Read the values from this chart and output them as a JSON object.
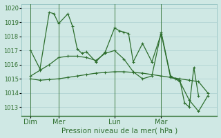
{
  "background_color": "#cfe8e4",
  "grid_color": "#aacfcf",
  "line_color": "#2d6e2d",
  "marker": "+",
  "title": "Pression niveau de la mer( hPa )",
  "ylim": [
    1012.4,
    1020.3
  ],
  "yticks": [
    1013,
    1014,
    1015,
    1016,
    1017,
    1018,
    1019,
    1020
  ],
  "xlim": [
    0,
    21
  ],
  "day_positions": [
    1,
    4,
    10,
    15
  ],
  "day_labels": [
    "Dim",
    "Mer",
    "Lun",
    "Mar"
  ],
  "vline_positions": [
    1,
    4,
    10,
    15
  ],
  "series1_x": [
    1,
    2,
    3,
    3.5,
    4,
    5,
    5.5,
    6,
    6.5,
    7,
    8,
    9,
    10,
    10.5,
    11,
    11.5,
    12,
    13,
    14,
    15,
    16,
    16.5,
    17,
    17.5,
    18,
    18.5,
    19
  ],
  "series1_y": [
    1017.0,
    1015.7,
    1019.7,
    1019.6,
    1018.9,
    1019.6,
    1018.7,
    1017.1,
    1016.8,
    1016.9,
    1016.2,
    1016.9,
    1018.6,
    1018.4,
    1018.3,
    1018.2,
    1016.2,
    1017.5,
    1016.2,
    1018.2,
    1015.1,
    1015.0,
    1014.9,
    1013.3,
    1013.0,
    1015.8,
    1013.8
  ],
  "series2_x": [
    1,
    2,
    3,
    4,
    5,
    6,
    7,
    8,
    9,
    10,
    11,
    12,
    13,
    14,
    15,
    16,
    17,
    18,
    19,
    20
  ],
  "series2_y": [
    1015.0,
    1014.9,
    1014.95,
    1015.0,
    1015.1,
    1015.2,
    1015.3,
    1015.4,
    1015.45,
    1015.5,
    1015.5,
    1015.45,
    1015.4,
    1015.3,
    1015.2,
    1015.1,
    1015.0,
    1014.9,
    1014.8,
    1014.0
  ],
  "series3_x": [
    1,
    2,
    3,
    4,
    5,
    6,
    7,
    8,
    9,
    10,
    11,
    12,
    13,
    14,
    15,
    16,
    17,
    18,
    19,
    20
  ],
  "series3_y": [
    1015.2,
    1015.6,
    1016.0,
    1016.5,
    1016.6,
    1016.6,
    1016.5,
    1016.3,
    1016.8,
    1017.0,
    1016.4,
    1015.5,
    1015.0,
    1015.2,
    1018.3,
    1015.2,
    1014.8,
    1013.5,
    1012.7,
    1013.8
  ]
}
